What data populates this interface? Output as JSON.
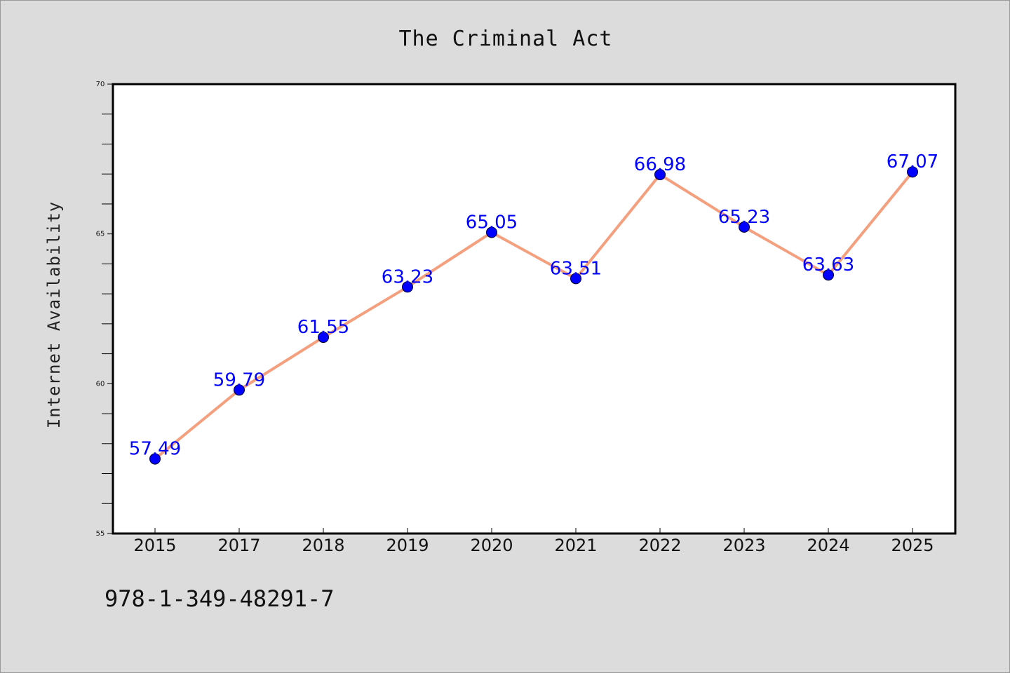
{
  "chart_data": {
    "type": "line",
    "title": "The Criminal Act",
    "xlabel": "",
    "ylabel": "Internet Availability",
    "categories": [
      "2015",
      "2017",
      "2018",
      "2019",
      "2020",
      "2021",
      "2022",
      "2023",
      "2024",
      "2025"
    ],
    "series": [
      {
        "values": [
          57.49,
          59.79,
          61.55,
          63.23,
          65.05,
          63.51,
          66.98,
          65.23,
          63.63,
          67.07
        ],
        "data_labels": [
          "57.49",
          "59.79",
          "61.55",
          "63.23",
          "65.05",
          "63.51",
          "66.98",
          "65.23",
          "63.63",
          "67.07"
        ]
      }
    ],
    "ylim": [
      55,
      70
    ],
    "yticks": [
      55,
      60,
      65,
      70
    ],
    "grid": false,
    "legend": "none",
    "colors": {
      "line": "#f4a07f",
      "marker": "#0000ff",
      "data_label": "#0000ff",
      "plot_background": "#ffffff",
      "figure_background": "#dcdcdc"
    }
  },
  "footer": {
    "isbn": "978-1-349-48291-7"
  }
}
